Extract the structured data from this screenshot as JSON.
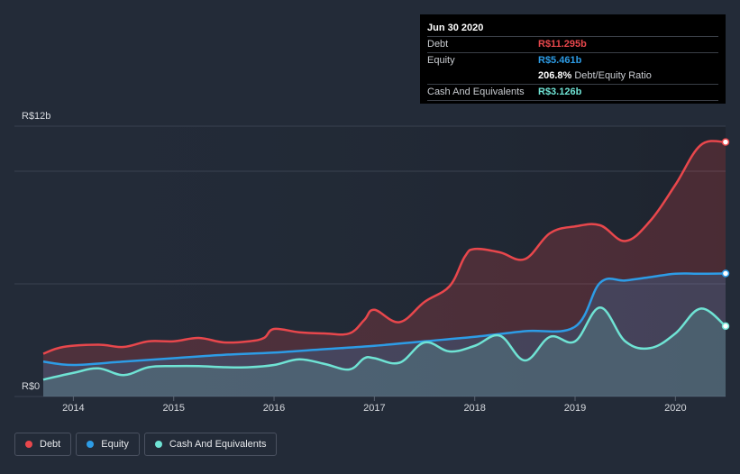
{
  "tooltip": {
    "date": "Jun 30 2020",
    "rows": [
      {
        "name": "Debt",
        "value": "R$11.295b",
        "color": "#e8474c"
      },
      {
        "name": "Equity",
        "value": "R$5.461b",
        "color": "#2d9ce6"
      },
      {
        "name": "",
        "value": "206.8%",
        "suffix": "Debt/Equity Ratio",
        "color": "#ffffff"
      },
      {
        "name": "Cash And Equivalents",
        "value": "R$3.126b",
        "color": "#6fe3d4"
      }
    ]
  },
  "legend": [
    {
      "label": "Debt",
      "color": "#e8474c"
    },
    {
      "label": "Equity",
      "color": "#2d9ce6"
    },
    {
      "label": "Cash And Equivalents",
      "color": "#6fe3d4"
    }
  ],
  "chart_data": {
    "type": "area",
    "title": "",
    "xlabel": "",
    "ylabel": "",
    "y_top_label": "R$12b",
    "y_bottom_label": "R$0",
    "ylim": [
      0,
      12
    ],
    "xlim": [
      2013.7,
      2020.5
    ],
    "x_ticks": [
      2014,
      2015,
      2016,
      2017,
      2018,
      2019,
      2020
    ],
    "series": [
      {
        "name": "Debt",
        "color": "#e8474c",
        "points": [
          [
            2013.7,
            1.9
          ],
          [
            2013.9,
            2.2
          ],
          [
            2014.25,
            2.3
          ],
          [
            2014.5,
            2.2
          ],
          [
            2014.75,
            2.45
          ],
          [
            2015.0,
            2.45
          ],
          [
            2015.25,
            2.6
          ],
          [
            2015.5,
            2.4
          ],
          [
            2015.75,
            2.45
          ],
          [
            2015.9,
            2.6
          ],
          [
            2016.0,
            3.0
          ],
          [
            2016.25,
            2.85
          ],
          [
            2016.5,
            2.8
          ],
          [
            2016.75,
            2.8
          ],
          [
            2016.9,
            3.4
          ],
          [
            2017.0,
            3.85
          ],
          [
            2017.25,
            3.3
          ],
          [
            2017.5,
            4.2
          ],
          [
            2017.75,
            4.9
          ],
          [
            2017.9,
            6.2
          ],
          [
            2018.0,
            6.55
          ],
          [
            2018.25,
            6.4
          ],
          [
            2018.5,
            6.1
          ],
          [
            2018.75,
            7.25
          ],
          [
            2019.0,
            7.55
          ],
          [
            2019.25,
            7.6
          ],
          [
            2019.5,
            6.9
          ],
          [
            2019.75,
            7.8
          ],
          [
            2020.0,
            9.4
          ],
          [
            2020.25,
            11.15
          ],
          [
            2020.5,
            11.295
          ]
        ]
      },
      {
        "name": "Equity",
        "color": "#2d9ce6",
        "points": [
          [
            2013.7,
            1.55
          ],
          [
            2014.0,
            1.4
          ],
          [
            2014.5,
            1.55
          ],
          [
            2015.0,
            1.7
          ],
          [
            2015.5,
            1.85
          ],
          [
            2016.0,
            1.95
          ],
          [
            2016.5,
            2.1
          ],
          [
            2017.0,
            2.25
          ],
          [
            2017.5,
            2.45
          ],
          [
            2018.0,
            2.65
          ],
          [
            2018.5,
            2.9
          ],
          [
            2019.0,
            3.1
          ],
          [
            2019.25,
            5.05
          ],
          [
            2019.5,
            5.15
          ],
          [
            2019.75,
            5.3
          ],
          [
            2020.0,
            5.45
          ],
          [
            2020.25,
            5.45
          ],
          [
            2020.5,
            5.461
          ]
        ]
      },
      {
        "name": "Cash And Equivalents",
        "color": "#6fe3d4",
        "points": [
          [
            2013.7,
            0.75
          ],
          [
            2014.0,
            1.05
          ],
          [
            2014.25,
            1.25
          ],
          [
            2014.5,
            0.95
          ],
          [
            2014.75,
            1.3
          ],
          [
            2015.0,
            1.35
          ],
          [
            2015.25,
            1.35
          ],
          [
            2015.5,
            1.3
          ],
          [
            2015.75,
            1.3
          ],
          [
            2016.0,
            1.4
          ],
          [
            2016.25,
            1.65
          ],
          [
            2016.5,
            1.45
          ],
          [
            2016.75,
            1.2
          ],
          [
            2016.9,
            1.7
          ],
          [
            2017.0,
            1.7
          ],
          [
            2017.25,
            1.5
          ],
          [
            2017.5,
            2.4
          ],
          [
            2017.75,
            2.0
          ],
          [
            2018.0,
            2.25
          ],
          [
            2018.25,
            2.7
          ],
          [
            2018.5,
            1.6
          ],
          [
            2018.75,
            2.65
          ],
          [
            2019.0,
            2.45
          ],
          [
            2019.25,
            3.95
          ],
          [
            2019.5,
            2.45
          ],
          [
            2019.75,
            2.15
          ],
          [
            2020.0,
            2.8
          ],
          [
            2020.25,
            3.9
          ],
          [
            2020.5,
            3.126
          ]
        ]
      }
    ]
  }
}
